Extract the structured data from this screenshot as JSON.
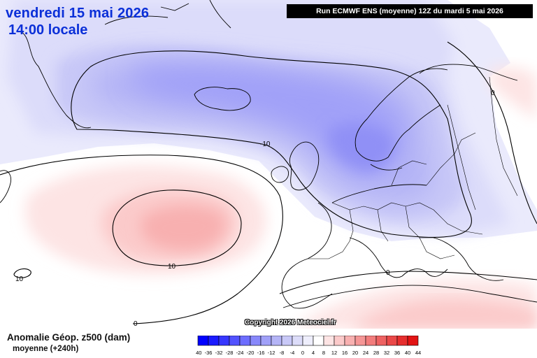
{
  "header": {
    "date": "vendredi 15 mai 2026",
    "time": "14:00 locale",
    "run": "Run ECMWF ENS (moyenne) 12Z du mardi 5 mai 2026"
  },
  "copyright": "Copyright 2026 Meteociel.fr",
  "legend": {
    "title": "Anomalie Géop. z500 (dam)",
    "subtitle": "moyenne  (+240h)",
    "scale": [
      {
        "label": "-40",
        "color": "#0000ff"
      },
      {
        "label": "-36",
        "color": "#1b1bff"
      },
      {
        "label": "-32",
        "color": "#3636ff"
      },
      {
        "label": "-28",
        "color": "#5252ff"
      },
      {
        "label": "-24",
        "color": "#6d6dff"
      },
      {
        "label": "-20",
        "color": "#8888fb"
      },
      {
        "label": "-16",
        "color": "#a0a0f8"
      },
      {
        "label": "-12",
        "color": "#b4b4f6"
      },
      {
        "label": "-8",
        "color": "#c8c8f7"
      },
      {
        "label": "-4",
        "color": "#dcdcf9"
      },
      {
        "label": "0",
        "color": "#eeeefc"
      },
      {
        "label": "4",
        "color": "#ffffff"
      },
      {
        "label": "8",
        "color": "#fde4e4"
      },
      {
        "label": "12",
        "color": "#fbcaca"
      },
      {
        "label": "16",
        "color": "#f8b0b0"
      },
      {
        "label": "20",
        "color": "#f59696"
      },
      {
        "label": "24",
        "color": "#f27c7c"
      },
      {
        "label": "28",
        "color": "#ee6262"
      },
      {
        "label": "32",
        "color": "#ea4848"
      },
      {
        "label": "36",
        "color": "#e62e2e"
      },
      {
        "label": "40",
        "color": "#e21414"
      },
      {
        "label": "44",
        "color": "#dd0000"
      }
    ]
  },
  "contours": {
    "neg10_a": "-10",
    "neg10_b": "-10",
    "pos10_a": "10",
    "pos10_b": "10",
    "zero_a": "0",
    "zero_b": "0",
    "zero_c": "0"
  }
}
